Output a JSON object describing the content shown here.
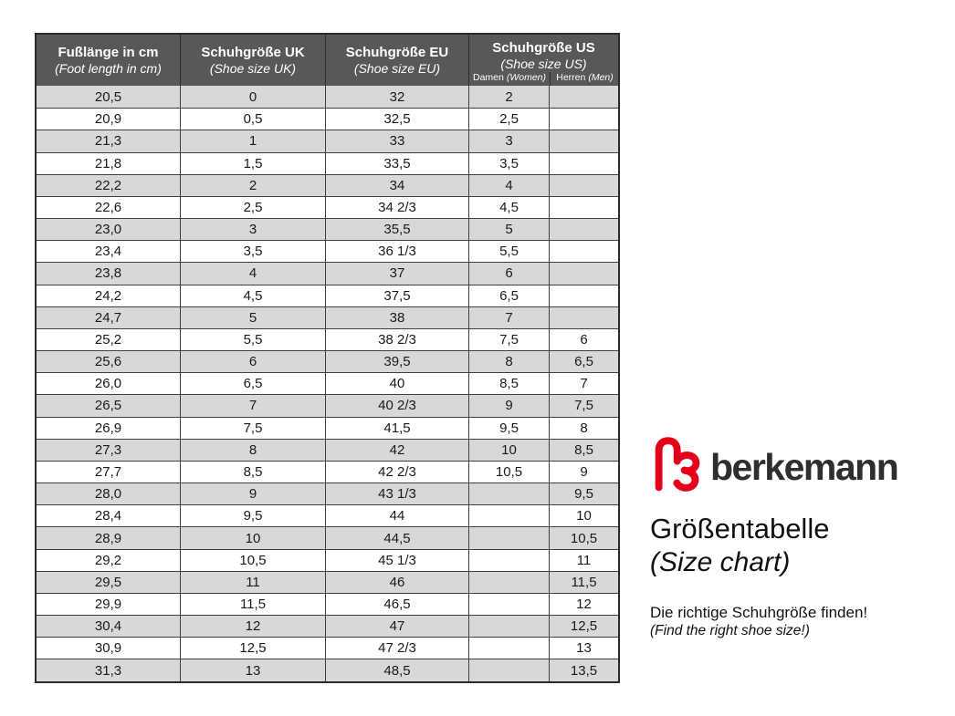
{
  "table": {
    "columns": [
      {
        "label": "Fußlänge in cm",
        "sublabel": "(Foot length in cm)"
      },
      {
        "label": "Schuhgröße UK",
        "sublabel": "(Shoe size UK)"
      },
      {
        "label": "Schuhgröße EU",
        "sublabel": "(Shoe size EU)"
      },
      {
        "label": "Schuhgröße US",
        "sublabel": "(Shoe size US)"
      }
    ],
    "us_subcolumns": [
      {
        "label": "Damen",
        "sublabel": "(Women)"
      },
      {
        "label": "Herren",
        "sublabel": "(Men)"
      }
    ],
    "rows": [
      [
        "20,5",
        "0",
        "32",
        "2",
        ""
      ],
      [
        "20,9",
        "0,5",
        "32,5",
        "2,5",
        ""
      ],
      [
        "21,3",
        "1",
        "33",
        "3",
        ""
      ],
      [
        "21,8",
        "1,5",
        "33,5",
        "3,5",
        ""
      ],
      [
        "22,2",
        "2",
        "34",
        "4",
        ""
      ],
      [
        "22,6",
        "2,5",
        "34 2/3",
        "4,5",
        ""
      ],
      [
        "23,0",
        "3",
        "35,5",
        "5",
        ""
      ],
      [
        "23,4",
        "3,5",
        "36 1/3",
        "5,5",
        ""
      ],
      [
        "23,8",
        "4",
        "37",
        "6",
        ""
      ],
      [
        "24,2",
        "4,5",
        "37,5",
        "6,5",
        ""
      ],
      [
        "24,7",
        "5",
        "38",
        "7",
        ""
      ],
      [
        "25,2",
        "5,5",
        "38 2/3",
        "7,5",
        "6"
      ],
      [
        "25,6",
        "6",
        "39,5",
        "8",
        "6,5"
      ],
      [
        "26,0",
        "6,5",
        "40",
        "8,5",
        "7"
      ],
      [
        "26,5",
        "7",
        "40 2/3",
        "9",
        "7,5"
      ],
      [
        "26,9",
        "7,5",
        "41,5",
        "9,5",
        "8"
      ],
      [
        "27,3",
        "8",
        "42",
        "10",
        "8,5"
      ],
      [
        "27,7",
        "8,5",
        "42 2/3",
        "10,5",
        "9"
      ],
      [
        "28,0",
        "9",
        "43 1/3",
        "",
        "9,5"
      ],
      [
        "28,4",
        "9,5",
        "44",
        "",
        "10"
      ],
      [
        "28,9",
        "10",
        "44,5",
        "",
        "10,5"
      ],
      [
        "29,2",
        "10,5",
        "45 1/3",
        "",
        "11"
      ],
      [
        "29,5",
        "11",
        "46",
        "",
        "11,5"
      ],
      [
        "29,9",
        "11,5",
        "46,5",
        "",
        "12"
      ],
      [
        "30,4",
        "12",
        "47",
        "",
        "12,5"
      ],
      [
        "30,9",
        "12,5",
        "47 2/3",
        "",
        "13"
      ],
      [
        "31,3",
        "13",
        "48,5",
        "",
        "13,5"
      ]
    ]
  },
  "brand": {
    "logo_text": "berkemann",
    "title": "Größentabelle",
    "title_translation": "(Size chart)",
    "tagline": "Die richtige Schuhgröße finden!",
    "tagline_translation": "(Find the right shoe size!)"
  },
  "colors": {
    "header_bg": "#58585b",
    "row_alt_bg": "#d8d8d8",
    "logo_red": "#e2001a",
    "border": "#3f3f41"
  }
}
